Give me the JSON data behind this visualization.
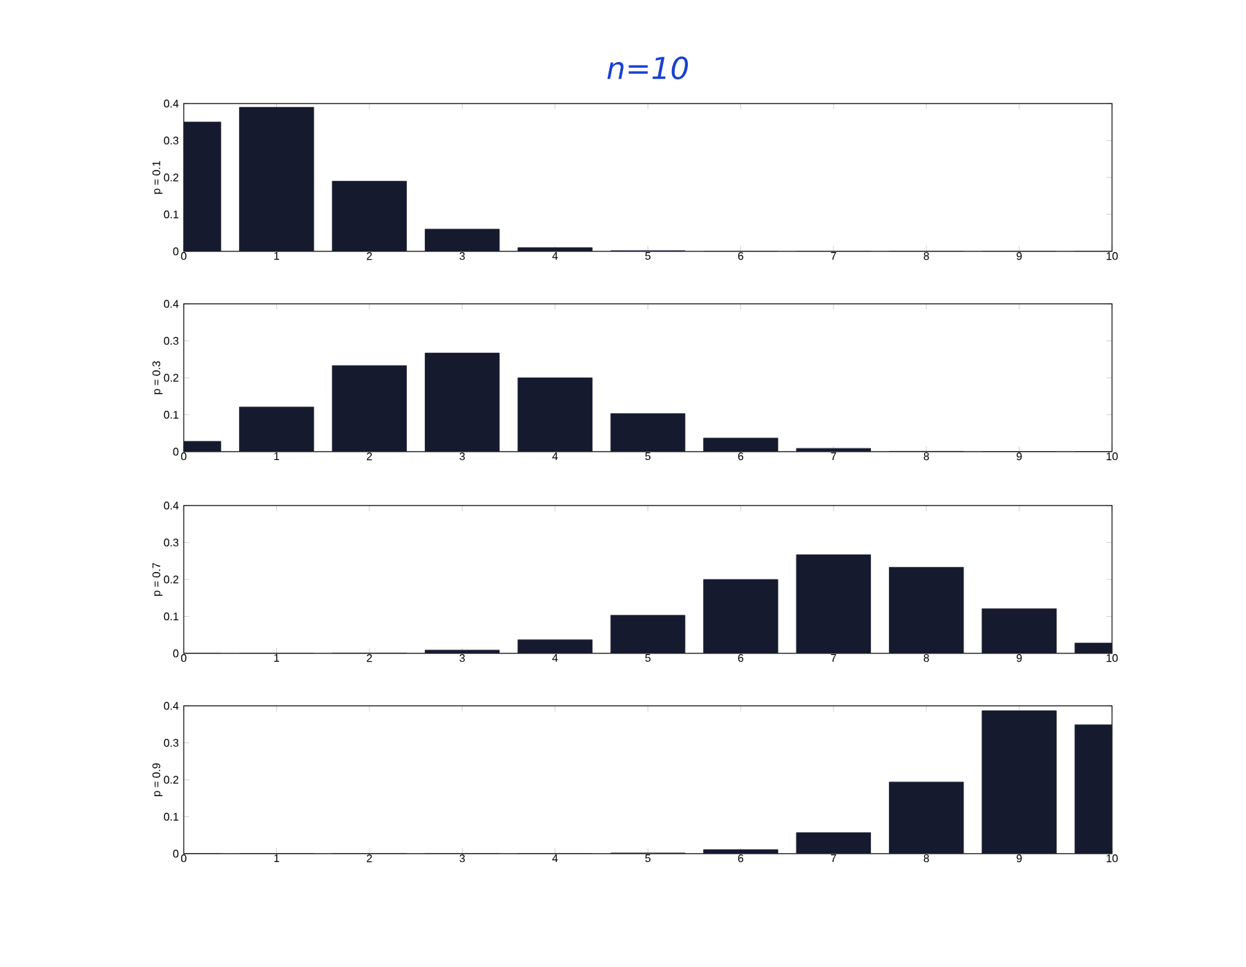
{
  "chart_data": [
    {
      "type": "bar",
      "title": "n=10",
      "ylabel": "p = 0.1",
      "color": "#161a2e",
      "x": [
        0,
        1,
        2,
        3,
        4,
        5,
        6,
        7,
        8,
        9,
        10
      ],
      "values": [
        0.35,
        0.39,
        0.19,
        0.06,
        0.01,
        0.002,
        0,
        0,
        0,
        0,
        0
      ],
      "xlim": [
        0,
        10
      ],
      "ylim": [
        0,
        0.4
      ],
      "xticks": [
        0,
        1,
        2,
        3,
        4,
        5,
        6,
        7,
        8,
        9,
        10
      ],
      "yticks": [
        0,
        0.1,
        0.2,
        0.3,
        0.4
      ]
    },
    {
      "type": "bar",
      "ylabel": "p = 0.3",
      "color": "#161a2e",
      "x": [
        0,
        1,
        2,
        3,
        4,
        5,
        6,
        7,
        8,
        9,
        10
      ],
      "values": [
        0.028,
        0.121,
        0.233,
        0.267,
        0.2,
        0.103,
        0.037,
        0.009,
        0.001,
        0,
        0
      ],
      "xlim": [
        0,
        10
      ],
      "ylim": [
        0,
        0.4
      ],
      "xticks": [
        0,
        1,
        2,
        3,
        4,
        5,
        6,
        7,
        8,
        9,
        10
      ],
      "yticks": [
        0,
        0.1,
        0.2,
        0.3,
        0.4
      ]
    },
    {
      "type": "bar",
      "ylabel": "p = 0.7",
      "color": "#161a2e",
      "x": [
        0,
        1,
        2,
        3,
        4,
        5,
        6,
        7,
        8,
        9,
        10
      ],
      "values": [
        0,
        0,
        0.001,
        0.009,
        0.037,
        0.103,
        0.2,
        0.267,
        0.233,
        0.121,
        0.028
      ],
      "xlim": [
        0,
        10
      ],
      "ylim": [
        0,
        0.4
      ],
      "xticks": [
        0,
        1,
        2,
        3,
        4,
        5,
        6,
        7,
        8,
        9,
        10
      ],
      "yticks": [
        0,
        0.1,
        0.2,
        0.3,
        0.4
      ]
    },
    {
      "type": "bar",
      "ylabel": "p = 0.9",
      "color": "#161a2e",
      "x": [
        0,
        1,
        2,
        3,
        4,
        5,
        6,
        7,
        8,
        9,
        10
      ],
      "values": [
        0,
        0,
        0,
        0,
        0,
        0.002,
        0.011,
        0.057,
        0.194,
        0.387,
        0.349
      ],
      "xlim": [
        0,
        10
      ],
      "ylim": [
        0,
        0.4
      ],
      "xticks": [
        0,
        1,
        2,
        3,
        4,
        5,
        6,
        7,
        8,
        9,
        10
      ],
      "yticks": [
        0,
        0.1,
        0.2,
        0.3,
        0.4
      ]
    }
  ]
}
